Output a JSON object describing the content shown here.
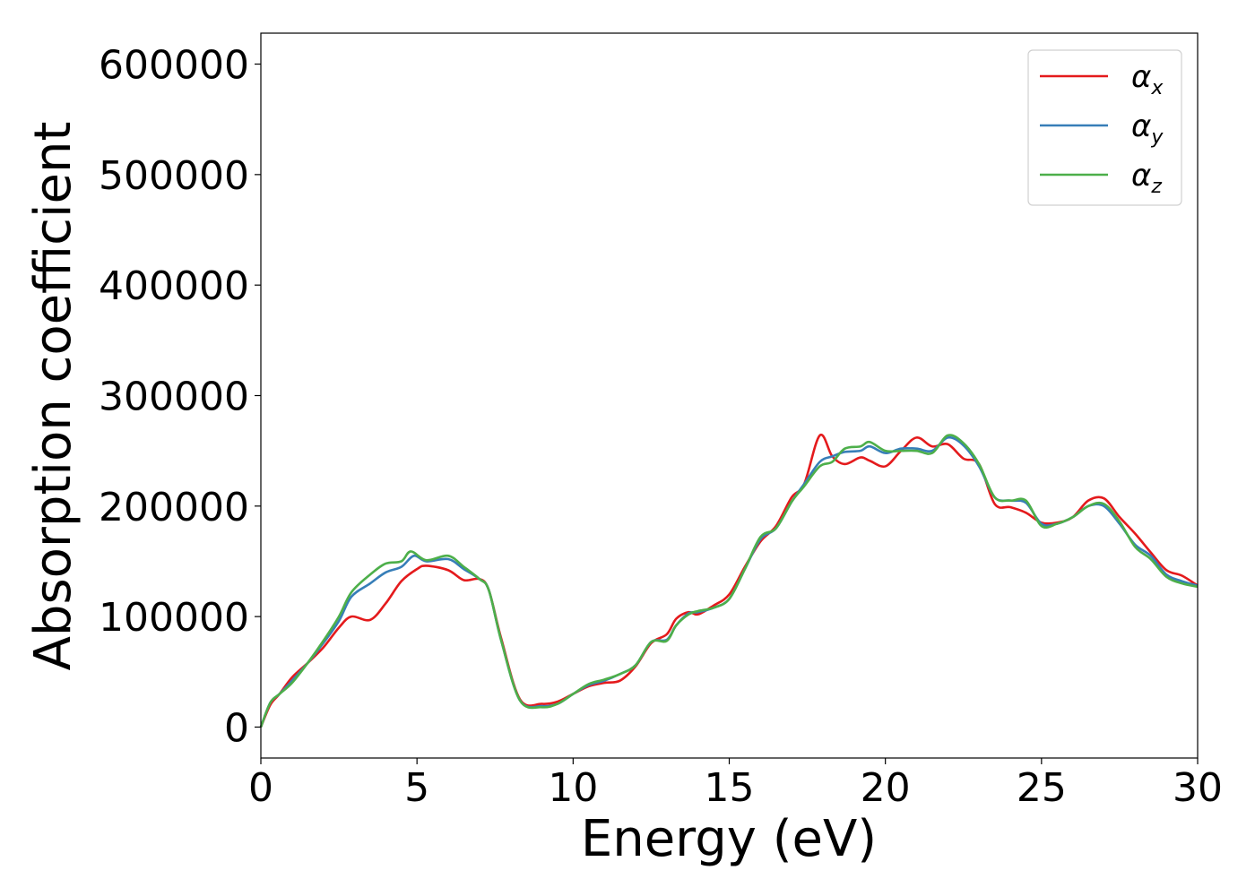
{
  "chart_data": {
    "type": "line",
    "title": "",
    "xlabel": "Energy (eV)",
    "ylabel": "Absorption coefficient",
    "xlim": [
      0,
      30
    ],
    "ylim": [
      -28000,
      628000
    ],
    "xticks": [
      "0",
      "5",
      "10",
      "15",
      "20",
      "25",
      "30"
    ],
    "xtick_values": [
      0,
      5,
      10,
      15,
      20,
      25,
      30
    ],
    "yticks": [
      "0",
      "100000",
      "200000",
      "300000",
      "400000",
      "500000",
      "600000"
    ],
    "ytick_values": [
      0,
      100000,
      200000,
      300000,
      400000,
      500000,
      600000
    ],
    "grid": false,
    "legend_position": "top-right",
    "legend": [
      {
        "symbol": "α",
        "sub": "x"
      },
      {
        "symbol": "α",
        "sub": "y"
      },
      {
        "symbol": "α",
        "sub": "z"
      }
    ],
    "series": [
      {
        "color": "#e41a1c",
        "x": [
          0,
          0.3,
          0.6,
          1,
          1.5,
          2,
          2.5,
          2.9,
          3.5,
          4,
          4.5,
          5,
          5.3,
          6,
          6.5,
          7,
          7.3,
          7.7,
          8.3,
          9,
          9.5,
          10,
          10.5,
          11,
          11.5,
          12,
          12.5,
          13,
          13.3,
          13.7,
          14,
          14.5,
          15,
          15.5,
          16,
          16.5,
          17,
          17.4,
          17.9,
          18.3,
          18.7,
          19.2,
          19.5,
          20,
          20.5,
          21,
          21.5,
          22,
          22.5,
          23,
          23.5,
          24,
          24.5,
          25,
          25.5,
          26,
          26.5,
          27,
          27.5,
          28,
          28.5,
          29,
          29.5,
          30
        ],
        "y": [
          0,
          20000,
          30000,
          45000,
          58000,
          72000,
          90000,
          100000,
          97000,
          112000,
          132000,
          143000,
          146000,
          142000,
          133000,
          134000,
          124000,
          80000,
          25000,
          21000,
          23000,
          30000,
          37000,
          40000,
          42000,
          55000,
          76000,
          84000,
          98000,
          104000,
          102000,
          110000,
          120000,
          145000,
          168000,
          182000,
          208000,
          220000,
          264000,
          245000,
          238000,
          244000,
          241000,
          236000,
          250000,
          262000,
          254000,
          256000,
          243000,
          238000,
          202000,
          199000,
          194000,
          185000,
          185000,
          190000,
          205000,
          207000,
          190000,
          175000,
          158000,
          142000,
          137000,
          128000
        ]
      },
      {
        "color": "#377eb8",
        "x": [
          0,
          0.3,
          0.6,
          1,
          1.5,
          2,
          2.5,
          2.9,
          3.5,
          4,
          4.5,
          4.9,
          5.3,
          6,
          6.5,
          7,
          7.3,
          7.7,
          8.3,
          9,
          9.5,
          10,
          10.5,
          11,
          11.5,
          12,
          12.5,
          13,
          13.3,
          13.7,
          14,
          14.5,
          15,
          15.5,
          16,
          16.5,
          17,
          17.4,
          17.9,
          18.3,
          18.7,
          19.2,
          19.5,
          20,
          20.5,
          21,
          21.5,
          22,
          22.5,
          23,
          23.5,
          24,
          24.5,
          25,
          25.5,
          26,
          26.5,
          27,
          27.5,
          28,
          28.5,
          29,
          29.5,
          30
        ],
        "y": [
          0,
          22000,
          30000,
          42000,
          58000,
          76000,
          96000,
          118000,
          130000,
          140000,
          145000,
          155000,
          150000,
          152000,
          143000,
          134000,
          124000,
          78000,
          24000,
          19000,
          21000,
          30000,
          38000,
          42000,
          48000,
          56000,
          77000,
          79000,
          92000,
          103000,
          104000,
          108000,
          116000,
          143000,
          170000,
          180000,
          204000,
          220000,
          240000,
          245000,
          249000,
          250000,
          254000,
          248000,
          252000,
          252000,
          250000,
          262000,
          255000,
          236000,
          208000,
          205000,
          203000,
          184000,
          184000,
          190000,
          200000,
          200000,
          184000,
          165000,
          155000,
          138000,
          132000,
          128000
        ]
      },
      {
        "color": "#4daf4a",
        "x": [
          0,
          0.3,
          0.6,
          1,
          1.5,
          2,
          2.5,
          2.9,
          3.5,
          4,
          4.5,
          4.8,
          5.3,
          6,
          6.5,
          7,
          7.3,
          7.7,
          8.3,
          9,
          9.5,
          10,
          10.5,
          11,
          11.5,
          12,
          12.5,
          13,
          13.3,
          13.7,
          14,
          14.5,
          15,
          15.5,
          16,
          16.5,
          17,
          17.4,
          17.9,
          18.3,
          18.7,
          19.2,
          19.5,
          20,
          20.5,
          21,
          21.5,
          22,
          22.5,
          23,
          23.5,
          24,
          24.5,
          25,
          25.5,
          26,
          26.5,
          27,
          27.5,
          28,
          28.5,
          29,
          29.5,
          30
        ],
        "y": [
          0,
          22000,
          30000,
          40000,
          58000,
          78000,
          100000,
          122000,
          138000,
          148000,
          150000,
          159000,
          151000,
          155000,
          145000,
          134000,
          124000,
          78000,
          24000,
          18000,
          21000,
          30000,
          39000,
          43000,
          48000,
          56000,
          77000,
          78000,
          92000,
          102000,
          105000,
          108000,
          116000,
          143000,
          172000,
          180000,
          204000,
          218000,
          236000,
          240000,
          252000,
          254000,
          258000,
          250000,
          250000,
          250000,
          248000,
          264000,
          257000,
          238000,
          208000,
          205000,
          205000,
          182000,
          184000,
          190000,
          200000,
          202000,
          186000,
          163000,
          152000,
          136000,
          130000,
          127000
        ]
      }
    ]
  }
}
